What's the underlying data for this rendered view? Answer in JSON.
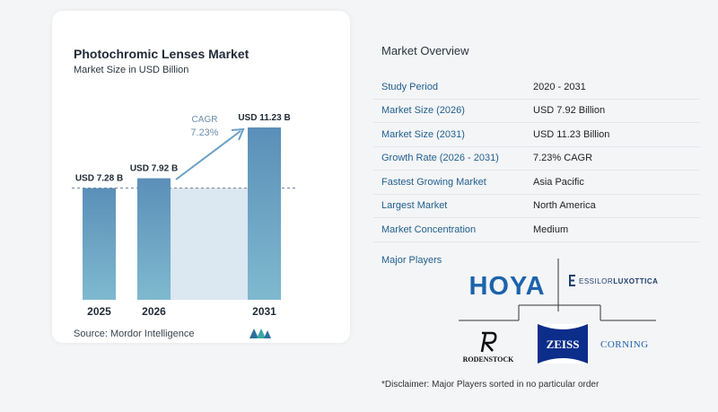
{
  "header": {
    "title": "Photochromic Lenses Market",
    "subtitle": "Market Size in USD Billion"
  },
  "chart_data": {
    "type": "bar",
    "categories": [
      "2025",
      "2026",
      "2031"
    ],
    "values": [
      7.28,
      7.92,
      11.23
    ],
    "value_labels": [
      "USD 7.28 B",
      "USD 7.92 B",
      "USD 11.23 B"
    ],
    "cagr_label": "CAGR",
    "cagr_value": "7.23%",
    "title": "Photochromic Lenses Market",
    "ylabel": "",
    "xlabel": "",
    "ylim": [
      0,
      11.5
    ],
    "bar_color": "#5b8fb8",
    "bar_color_light": "#7fb9cf",
    "shade_color": "#dbe7f1"
  },
  "source": {
    "label": "Source:",
    "name": "Mordor Intelligence"
  },
  "overview": {
    "title": "Market Overview",
    "rows": [
      {
        "key": "Study Period",
        "value": "2020 - 2031"
      },
      {
        "key": "Market Size (2026)",
        "value": "USD 7.92 Billion"
      },
      {
        "key": "Market Size (2031)",
        "value": "USD 11.23 Billion"
      },
      {
        "key": "Growth Rate (2026 - 2031)",
        "value": "7.23% CAGR"
      },
      {
        "key": "Fastest Growing Market",
        "value": "Asia Pacific"
      },
      {
        "key": "Largest Market",
        "value": "North America"
      },
      {
        "key": "Market Concentration",
        "value": "Medium"
      }
    ]
  },
  "players": {
    "label": "Major Players",
    "logos": {
      "hoya": "HOYA",
      "essilor_a": "ESSILOR",
      "essilor_b": "LUXOTTICA",
      "rodenstock": "RODENSTOCK",
      "zeiss": "ZEISS",
      "corning": "CORNING"
    }
  },
  "disclaimer": "*Disclaimer: Major Players sorted in no particular order"
}
